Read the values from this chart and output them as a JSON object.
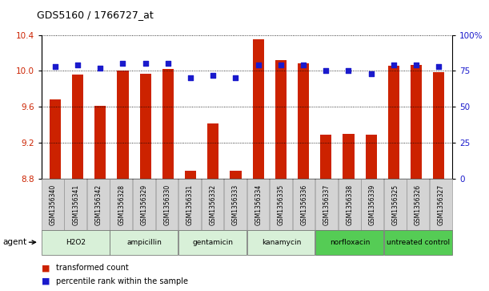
{
  "title": "GDS5160 / 1766727_at",
  "samples": [
    "GSM1356340",
    "GSM1356341",
    "GSM1356342",
    "GSM1356328",
    "GSM1356329",
    "GSM1356330",
    "GSM1356331",
    "GSM1356332",
    "GSM1356333",
    "GSM1356334",
    "GSM1356335",
    "GSM1356336",
    "GSM1356337",
    "GSM1356338",
    "GSM1356339",
    "GSM1356325",
    "GSM1356326",
    "GSM1356327"
  ],
  "red_values": [
    9.68,
    9.96,
    9.61,
    10.0,
    9.97,
    10.02,
    8.89,
    9.42,
    8.89,
    10.35,
    10.12,
    10.08,
    9.29,
    9.3,
    9.29,
    10.06,
    10.07,
    9.99
  ],
  "blue_values": [
    78,
    79,
    77,
    80,
    80,
    80,
    70,
    72,
    70,
    79,
    79,
    79,
    75,
    75,
    73,
    79,
    79,
    78
  ],
  "groups": [
    {
      "label": "H2O2",
      "start": 0,
      "end": 3,
      "color": "#d8f0d8"
    },
    {
      "label": "ampicillin",
      "start": 3,
      "end": 6,
      "color": "#d8f0d8"
    },
    {
      "label": "gentamicin",
      "start": 6,
      "end": 9,
      "color": "#d8f0d8"
    },
    {
      "label": "kanamycin",
      "start": 9,
      "end": 12,
      "color": "#d8f0d8"
    },
    {
      "label": "norfloxacin",
      "start": 12,
      "end": 15,
      "color": "#55cc55"
    },
    {
      "label": "untreated control",
      "start": 15,
      "end": 18,
      "color": "#55cc55"
    }
  ],
  "ylim_left": [
    8.8,
    10.4
  ],
  "ylim_right": [
    0,
    100
  ],
  "yticks_left": [
    8.8,
    9.2,
    9.6,
    10.0,
    10.4
  ],
  "yticks_right": [
    0,
    25,
    50,
    75,
    100
  ],
  "bar_color": "#cc2200",
  "dot_color": "#1a1acc",
  "bar_width": 0.5,
  "legend_red": "transformed count",
  "legend_blue": "percentile rank within the sample",
  "agent_label": "agent",
  "xlim": [
    -0.6,
    17.6
  ]
}
